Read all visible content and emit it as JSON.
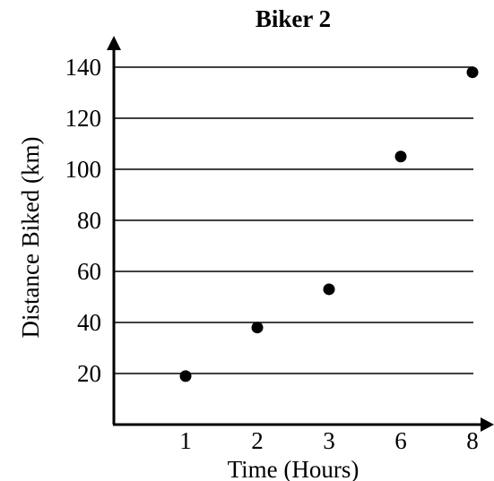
{
  "chart_data": {
    "type": "scatter",
    "title": "Biker 2",
    "xlabel": "Time (Hours)",
    "ylabel": "Distance Biked (km)",
    "categories": [
      "1",
      "2",
      "3",
      "6",
      "8"
    ],
    "x": [
      1,
      2,
      3,
      6,
      8
    ],
    "y": [
      19,
      38,
      53,
      105,
      138
    ],
    "yticks": [
      20,
      40,
      60,
      80,
      100,
      120,
      140
    ],
    "ylim": [
      0,
      150
    ],
    "grid": true,
    "legend": "none",
    "colors": {
      "axis": "#000000",
      "grid": "#000000",
      "point": "#000000"
    }
  }
}
